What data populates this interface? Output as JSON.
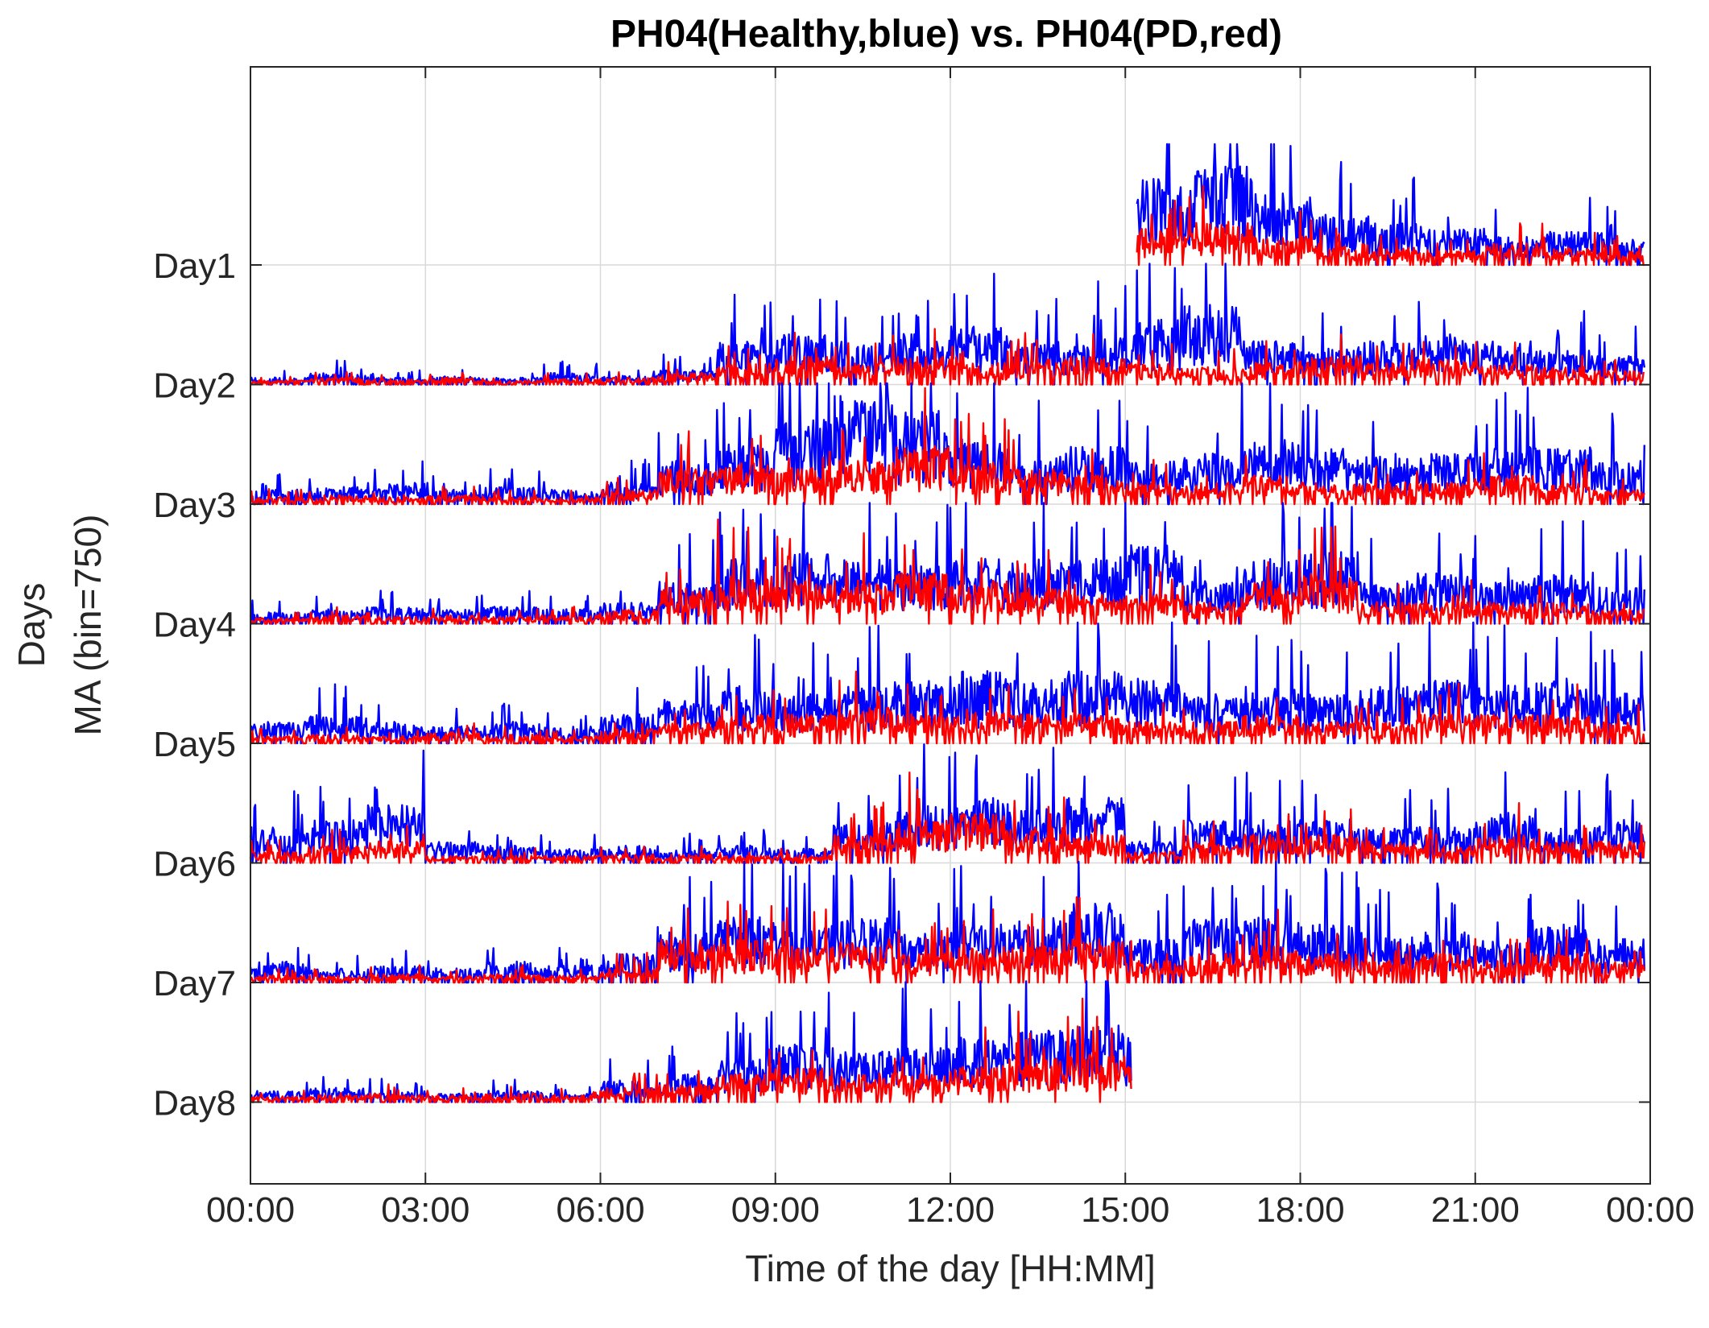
{
  "chart_data": {
    "type": "line",
    "title": "PH04(Healthy,blue) vs. PH04(PD,red)",
    "xlabel": "Time of the day [HH:MM]",
    "ylabel_lines": [
      "Days",
      "MA (bin=750)"
    ],
    "x_tick_labels": [
      "00:00",
      "03:00",
      "06:00",
      "09:00",
      "12:00",
      "15:00",
      "18:00",
      "21:00",
      "00:00"
    ],
    "xlim_hours": [
      0,
      24
    ],
    "grid": true,
    "colors": {
      "healthy": "#0000ff",
      "pd": "#ff0000",
      "grid": "#d9d9d9",
      "axis": "#262626"
    },
    "days": [
      {
        "label": "Day1",
        "start_h": 15.2,
        "end_h": 23.9,
        "healthy": [
          0.6,
          0.7,
          0.5,
          0.35,
          0.3,
          0.25,
          0.2,
          0.25,
          0.2,
          0.3,
          0.35,
          0.3,
          0.25,
          0.3,
          0.4,
          0.35,
          0.25,
          0.2,
          0.3,
          0.35,
          0.25,
          0.3,
          0.2,
          0.25
        ],
        "pd": [
          0.25,
          0.3,
          0.2,
          0.15,
          0.12,
          0.1,
          0.15,
          0.12,
          0.1,
          0.15,
          0.2,
          0.15,
          0.1,
          0.12,
          0.15,
          0.12,
          0.1,
          0.1,
          0.15,
          0.2,
          0.15,
          0.12,
          0.1,
          0.1
        ]
      },
      {
        "label": "Day2",
        "start_h": 0,
        "end_h": 23.9,
        "healthy": [
          0.05,
          0.08,
          0.05,
          0.06,
          0.05,
          0.08,
          0.06,
          0.1,
          0.3,
          0.35,
          0.3,
          0.35,
          0.4,
          0.3,
          0.35,
          0.45,
          0.55,
          0.3,
          0.25,
          0.3,
          0.35,
          0.3,
          0.25,
          0.2
        ],
        "pd": [
          0.03,
          0.05,
          0.04,
          0.05,
          0.03,
          0.04,
          0.05,
          0.08,
          0.15,
          0.2,
          0.15,
          0.2,
          0.15,
          0.18,
          0.2,
          0.15,
          0.12,
          0.15,
          0.2,
          0.15,
          0.18,
          0.15,
          0.12,
          0.1
        ]
      },
      {
        "label": "Day3",
        "start_h": 0,
        "end_h": 23.9,
        "healthy": [
          0.1,
          0.12,
          0.15,
          0.1,
          0.12,
          0.1,
          0.15,
          0.3,
          0.45,
          0.6,
          0.75,
          0.65,
          0.45,
          0.35,
          0.4,
          0.3,
          0.35,
          0.45,
          0.4,
          0.35,
          0.35,
          0.4,
          0.4,
          0.3
        ],
        "pd": [
          0.05,
          0.06,
          0.05,
          0.06,
          0.05,
          0.05,
          0.1,
          0.25,
          0.3,
          0.25,
          0.3,
          0.4,
          0.3,
          0.25,
          0.2,
          0.15,
          0.15,
          0.2,
          0.15,
          0.15,
          0.15,
          0.2,
          0.15,
          0.1
        ]
      },
      {
        "label": "Day4",
        "start_h": 0,
        "end_h": 23.9,
        "healthy": [
          0.08,
          0.1,
          0.12,
          0.1,
          0.12,
          0.1,
          0.15,
          0.3,
          0.45,
          0.5,
          0.45,
          0.4,
          0.45,
          0.45,
          0.5,
          0.55,
          0.3,
          0.45,
          0.5,
          0.3,
          0.35,
          0.3,
          0.35,
          0.25
        ],
        "pd": [
          0.04,
          0.06,
          0.05,
          0.06,
          0.05,
          0.06,
          0.1,
          0.25,
          0.35,
          0.3,
          0.3,
          0.35,
          0.3,
          0.25,
          0.2,
          0.2,
          0.15,
          0.3,
          0.35,
          0.15,
          0.15,
          0.15,
          0.15,
          0.1
        ]
      },
      {
        "label": "Day5",
        "start_h": 0,
        "end_h": 23.9,
        "healthy": [
          0.15,
          0.2,
          0.15,
          0.12,
          0.15,
          0.12,
          0.2,
          0.3,
          0.4,
          0.35,
          0.4,
          0.45,
          0.5,
          0.45,
          0.5,
          0.45,
          0.35,
          0.4,
          0.35,
          0.4,
          0.45,
          0.4,
          0.45,
          0.35
        ],
        "pd": [
          0.05,
          0.06,
          0.05,
          0.08,
          0.06,
          0.05,
          0.1,
          0.15,
          0.2,
          0.2,
          0.25,
          0.2,
          0.25,
          0.2,
          0.2,
          0.15,
          0.15,
          0.2,
          0.15,
          0.15,
          0.2,
          0.2,
          0.2,
          0.15
        ]
      },
      {
        "label": "Day6",
        "start_h": 0,
        "end_h": 23.9,
        "healthy": [
          0.25,
          0.3,
          0.4,
          0.15,
          0.12,
          0.1,
          0.12,
          0.1,
          0.12,
          0.1,
          0.3,
          0.4,
          0.45,
          0.4,
          0.45,
          0.15,
          0.3,
          0.3,
          0.3,
          0.25,
          0.25,
          0.35,
          0.25,
          0.3
        ],
        "pd": [
          0.08,
          0.12,
          0.15,
          0.05,
          0.05,
          0.05,
          0.06,
          0.06,
          0.05,
          0.06,
          0.2,
          0.3,
          0.35,
          0.25,
          0.2,
          0.08,
          0.15,
          0.2,
          0.2,
          0.15,
          0.12,
          0.2,
          0.15,
          0.15
        ]
      },
      {
        "label": "Day7",
        "start_h": 0,
        "end_h": 23.9,
        "healthy": [
          0.15,
          0.1,
          0.12,
          0.1,
          0.15,
          0.12,
          0.2,
          0.35,
          0.45,
          0.4,
          0.45,
          0.35,
          0.4,
          0.45,
          0.55,
          0.3,
          0.45,
          0.45,
          0.4,
          0.35,
          0.35,
          0.3,
          0.4,
          0.3
        ],
        "pd": [
          0.05,
          0.05,
          0.06,
          0.05,
          0.06,
          0.05,
          0.1,
          0.3,
          0.3,
          0.25,
          0.3,
          0.2,
          0.25,
          0.25,
          0.3,
          0.15,
          0.2,
          0.25,
          0.2,
          0.15,
          0.2,
          0.15,
          0.2,
          0.15
        ]
      },
      {
        "label": "Day8",
        "start_h": 0,
        "end_h": 15.1,
        "healthy": [
          0.08,
          0.1,
          0.08,
          0.06,
          0.08,
          0.06,
          0.15,
          0.2,
          0.3,
          0.4,
          0.35,
          0.4,
          0.45,
          0.5,
          0.55,
          0.5
        ],
        "pd": [
          0.04,
          0.05,
          0.06,
          0.05,
          0.06,
          0.05,
          0.1,
          0.12,
          0.2,
          0.25,
          0.2,
          0.2,
          0.25,
          0.3,
          0.35,
          0.3
        ]
      }
    ]
  }
}
